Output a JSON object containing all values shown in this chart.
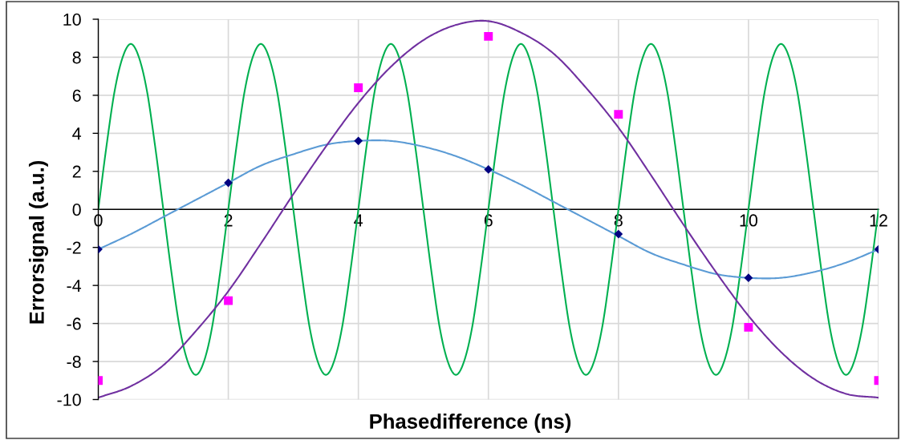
{
  "chart_data": {
    "type": "line",
    "xlabel": "Phasedifference (ns)",
    "ylabel": "Errorsignal (a.u.)",
    "xlim": [
      0,
      12
    ],
    "ylim": [
      -10,
      10
    ],
    "xticks": [
      0,
      2,
      4,
      6,
      8,
      10,
      12
    ],
    "yticks": [
      -10,
      -8,
      -6,
      -4,
      -2,
      0,
      2,
      4,
      6,
      8,
      10
    ],
    "grid": true,
    "series": [
      {
        "color": "#00b050",
        "x": [
          0,
          0.125,
          0.25,
          0.375,
          0.5,
          0.625,
          0.75,
          0.875,
          1,
          1.125,
          1.25,
          1.375,
          1.5,
          1.625,
          1.75,
          1.875,
          2,
          2.125,
          2.25,
          2.375,
          2.5,
          2.625,
          2.75,
          2.875,
          3,
          3.125,
          3.25,
          3.375,
          3.5,
          3.625,
          3.75,
          3.875,
          4,
          4.125,
          4.25,
          4.375,
          4.5,
          4.625,
          4.75,
          4.875,
          5,
          5.125,
          5.25,
          5.375,
          5.5,
          5.625,
          5.75,
          5.875,
          6,
          6.125,
          6.25,
          6.375,
          6.5,
          6.625,
          6.75,
          6.875,
          7,
          7.125,
          7.25,
          7.375,
          7.5,
          7.625,
          7.75,
          7.875,
          8,
          8.125,
          8.25,
          8.375,
          8.5,
          8.625,
          8.75,
          8.875,
          9,
          9.125,
          9.25,
          9.375,
          9.5,
          9.625,
          9.75,
          9.875,
          10,
          10.125,
          10.25,
          10.375,
          10.5,
          10.625,
          10.75,
          10.875,
          11,
          11.125,
          11.25,
          11.375,
          11.5,
          11.625,
          11.75,
          11.875,
          12
        ],
        "values": [
          0,
          3.3,
          6.2,
          8.0,
          8.7,
          8.0,
          6.2,
          3.3,
          0,
          -3.3,
          -6.2,
          -8.0,
          -8.7,
          -8.0,
          -6.2,
          -3.3,
          0,
          3.3,
          6.2,
          8.0,
          8.7,
          8.0,
          6.2,
          3.3,
          0,
          -3.3,
          -6.2,
          -8.0,
          -8.7,
          -8.0,
          -6.2,
          -3.3,
          0,
          3.3,
          6.2,
          8.0,
          8.7,
          8.0,
          6.2,
          3.3,
          0,
          -3.3,
          -6.2,
          -8.0,
          -8.7,
          -8.0,
          -6.2,
          -3.3,
          0,
          3.3,
          6.2,
          8.0,
          8.7,
          8.0,
          6.2,
          3.3,
          0,
          -3.3,
          -6.2,
          -8.0,
          -8.7,
          -8.0,
          -6.2,
          -3.3,
          0,
          3.3,
          6.2,
          8.0,
          8.7,
          8.0,
          6.2,
          3.3,
          0,
          -3.3,
          -6.2,
          -8.0,
          -8.7,
          -8.0,
          -6.2,
          -3.3,
          0,
          3.3,
          6.2,
          8.0,
          8.7,
          8.0,
          6.2,
          3.3,
          0,
          -3.3,
          -6.2,
          -8.0,
          -8.7,
          -8.0,
          -6.2,
          -3.3,
          0
        ]
      },
      {
        "color": "#5b9bd5",
        "x": [
          0,
          0.5,
          1,
          1.5,
          2,
          2.5,
          3,
          3.5,
          4,
          4.5,
          5,
          5.5,
          6,
          6.5,
          7,
          7.5,
          8,
          8.5,
          9,
          9.5,
          10,
          10.5,
          11,
          11.5,
          12
        ],
        "values": [
          -2.1,
          -1.3,
          -0.4,
          0.5,
          1.4,
          2.3,
          2.9,
          3.4,
          3.6,
          3.6,
          3.3,
          2.8,
          2.1,
          1.3,
          0.4,
          -0.5,
          -1.4,
          -2.3,
          -2.9,
          -3.4,
          -3.6,
          -3.6,
          -3.3,
          -2.8,
          -2.1
        ]
      },
      {
        "color": "#7030a0",
        "x": [
          0,
          0.5,
          1,
          1.5,
          2,
          2.5,
          3,
          3.5,
          4,
          4.5,
          5,
          5.5,
          6,
          6.5,
          7,
          7.5,
          8,
          8.5,
          9,
          9.5,
          10,
          10.5,
          11,
          11.5,
          12
        ],
        "values": [
          -9.9,
          -9.3,
          -8.2,
          -6.4,
          -4.3,
          -1.8,
          0.8,
          3.3,
          5.6,
          7.5,
          8.9,
          9.7,
          9.9,
          9.3,
          8.2,
          6.4,
          4.3,
          1.8,
          -0.8,
          -3.3,
          -5.6,
          -7.5,
          -8.9,
          -9.7,
          -9.9
        ]
      },
      {
        "type": "scatter",
        "color": "#000080",
        "marker": "diamond",
        "x": [
          0,
          2,
          4,
          6,
          8,
          10,
          12
        ],
        "values": [
          -2.1,
          1.4,
          3.6,
          2.1,
          -1.3,
          -3.6,
          -2.1
        ]
      },
      {
        "type": "scatter",
        "color": "#ff00ff",
        "marker": "square",
        "x": [
          0,
          2,
          4,
          6,
          8,
          10,
          12
        ],
        "values": [
          -9.0,
          -4.8,
          6.4,
          9.1,
          5.0,
          -6.2,
          -9.0
        ]
      }
    ]
  }
}
